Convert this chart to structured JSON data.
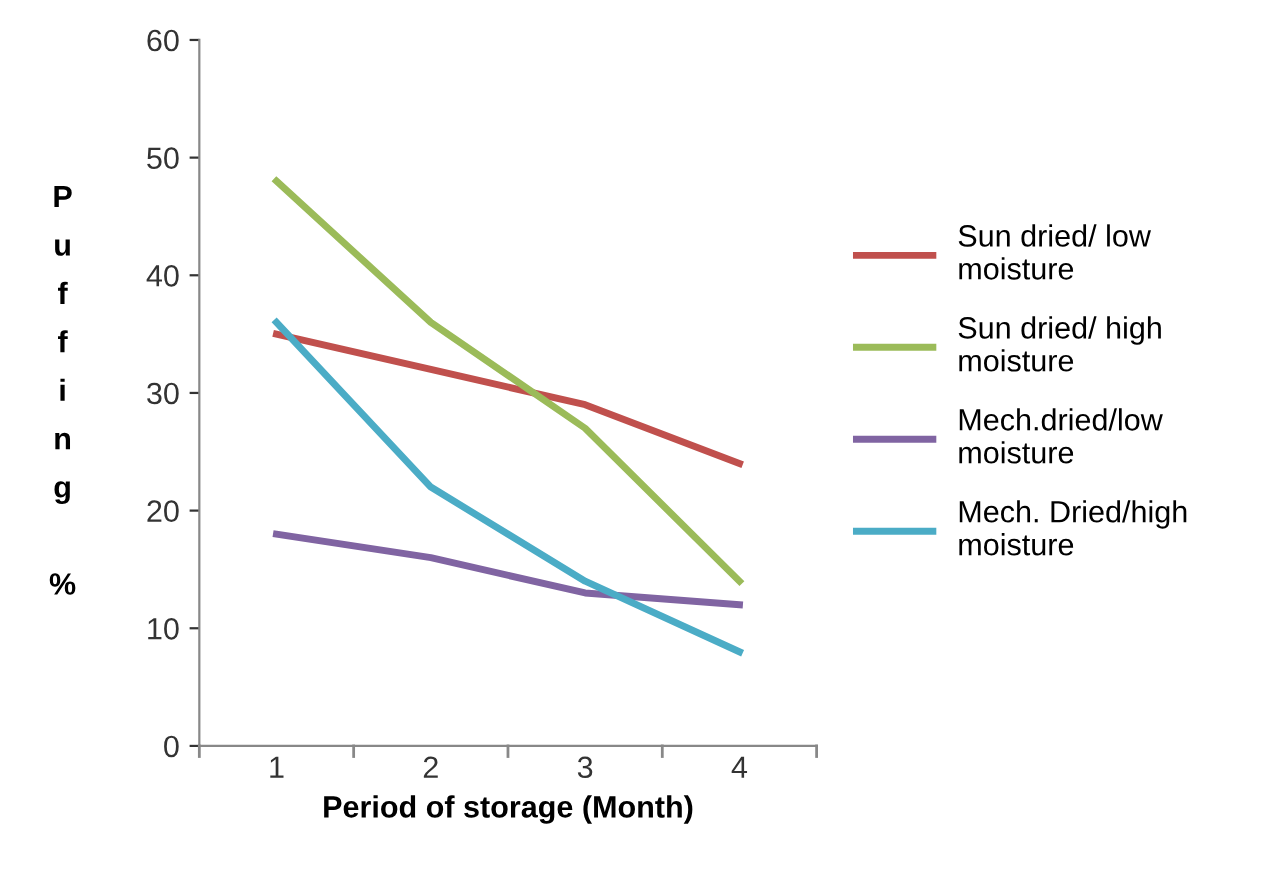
{
  "chart_data": {
    "type": "line",
    "xlabel": "Period of storage (Month)",
    "ylabel": "Puffing %",
    "categories": [
      "1",
      "2",
      "3",
      "4"
    ],
    "series": [
      {
        "name": "Sun dried/ low\nmoisture",
        "color": "#c0504d",
        "values": [
          35,
          32,
          29,
          24
        ]
      },
      {
        "name": "Sun dried/ high\nmoisture",
        "color": "#9bbb59",
        "values": [
          48,
          36,
          27,
          14
        ]
      },
      {
        "name": "Mech.dried/low\nmoisture",
        "color": "#8064a2",
        "values": [
          18,
          16,
          13,
          12
        ]
      },
      {
        "name": "Mech. Dried/high\nmoisture",
        "color": "#4bacc6",
        "values": [
          36,
          22,
          14,
          8
        ]
      }
    ],
    "ylim": [
      0,
      60
    ],
    "yticks": [
      0,
      10,
      20,
      30,
      40,
      50,
      60
    ],
    "grid": false,
    "legend": "right",
    "marker": "none",
    "line_style": "solid"
  }
}
